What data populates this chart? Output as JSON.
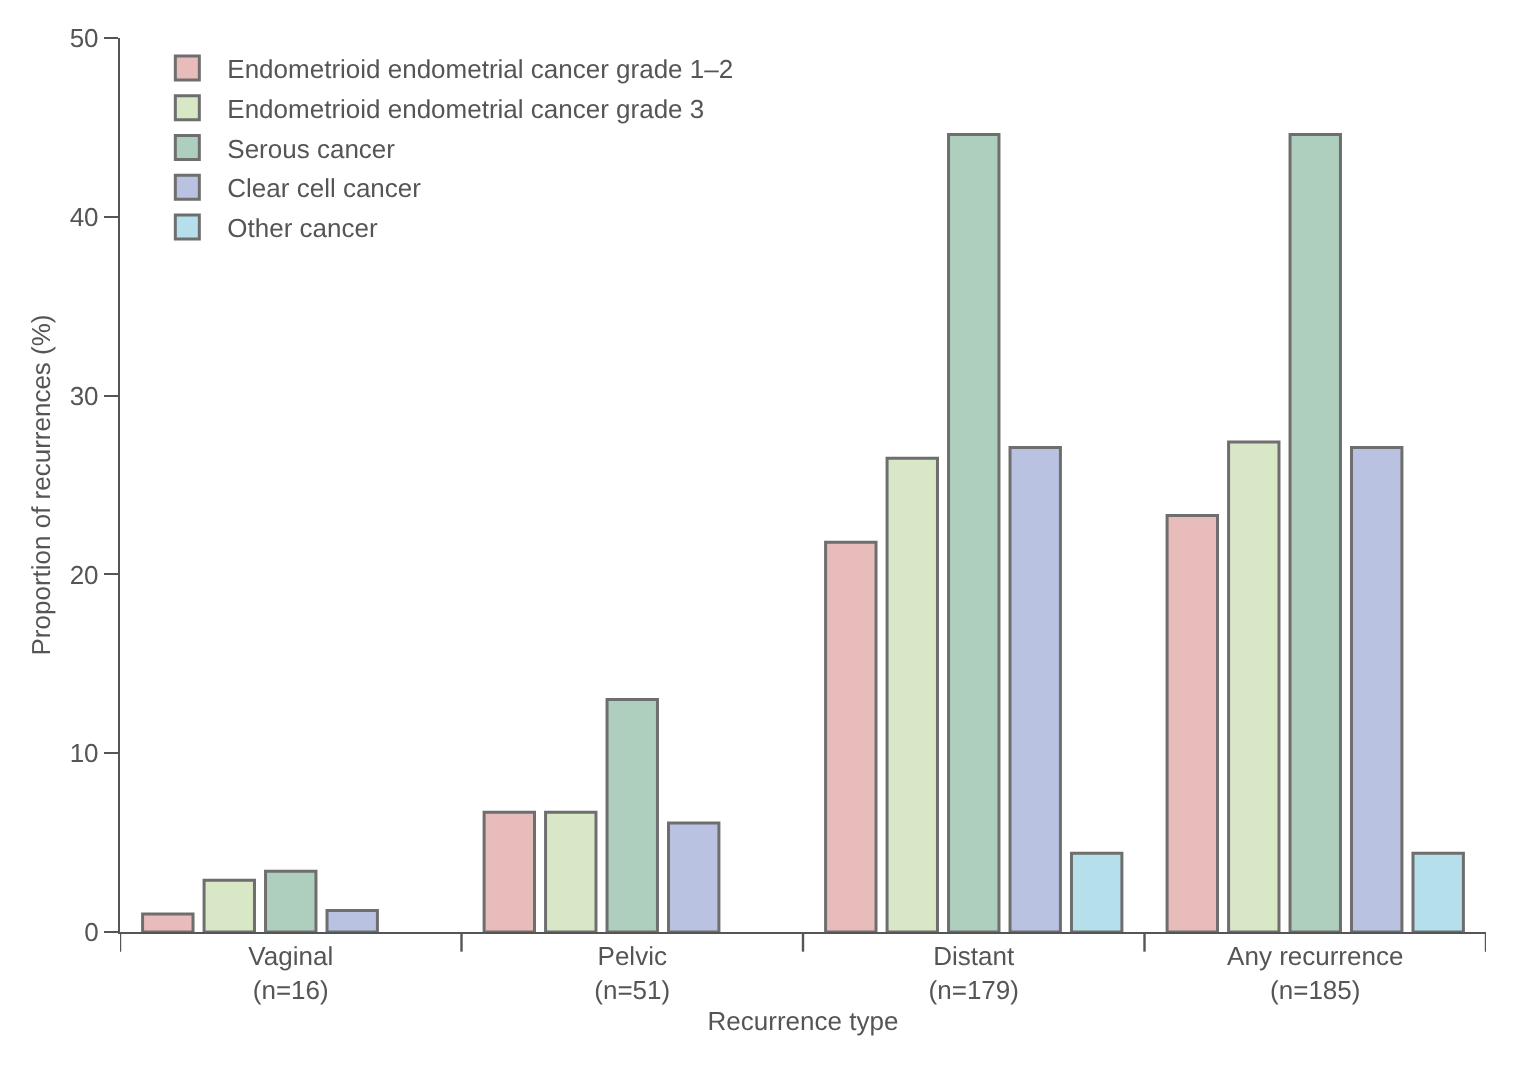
{
  "chart_data": {
    "type": "bar",
    "xlabel": "Recurrence type",
    "ylabel": "Proportion of recurrences (%)",
    "categories": [
      "Vaginal\n(n=16)",
      "Pelvic\n(n=51)",
      "Distant\n(n=179)",
      "Any recurrence\n(n=185)"
    ],
    "series": [
      {
        "name": "Endometrioid endometrial cancer grade 1–2",
        "color": "#e8bcbb",
        "values": [
          1.0,
          6.7,
          21.8,
          23.3
        ]
      },
      {
        "name": "Endometrioid endometrial cancer grade 3",
        "color": "#d8e8c6",
        "values": [
          2.9,
          6.7,
          26.5,
          27.4
        ]
      },
      {
        "name": "Serous cancer",
        "color": "#aecfbd",
        "values": [
          3.4,
          13.0,
          44.6,
          44.6
        ]
      },
      {
        "name": "Clear cell cancer",
        "color": "#b9c2e0",
        "values": [
          1.2,
          6.1,
          27.1,
          27.1
        ]
      },
      {
        "name": "Other cancer",
        "color": "#b5e0eb",
        "values": [
          null,
          null,
          4.4,
          4.4
        ]
      }
    ],
    "ylim": [
      0,
      50
    ],
    "yticks": [
      0,
      10,
      20,
      30,
      40,
      50
    ],
    "legend": "top left"
  }
}
